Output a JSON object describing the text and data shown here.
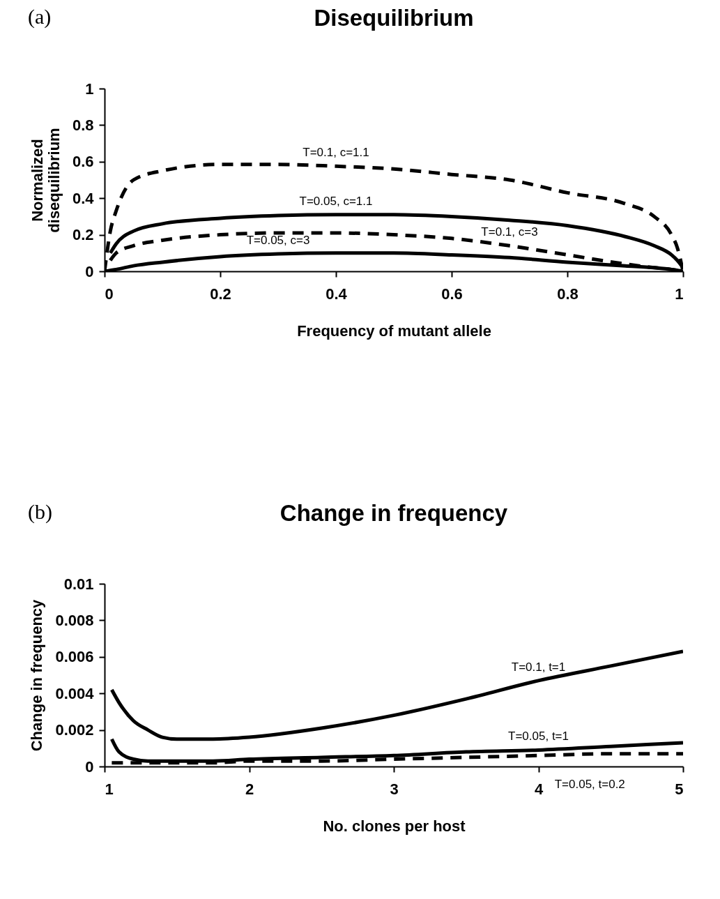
{
  "chart_data": [
    {
      "type": "line",
      "title": "Disequilibrium",
      "xlabel": "Frequency of mutant allele",
      "ylabel": "Normalized disequilibrium",
      "xlim": [
        0,
        1
      ],
      "ylim": [
        0,
        1
      ],
      "xticks": [
        0,
        0.2,
        0.4,
        0.6,
        0.8,
        1
      ],
      "yticks": [
        0,
        0.2,
        0.4,
        0.6,
        0.8,
        1
      ],
      "grid": false,
      "x": [
        0,
        0.01,
        0.02,
        0.05,
        0.1,
        0.2,
        0.3,
        0.4,
        0.5,
        0.6,
        0.7,
        0.8,
        0.9,
        0.95,
        0.98,
        0.99,
        1
      ],
      "series": [
        {
          "color": "#000000",
          "line_style": "dashed",
          "values": [
            0,
            0.22,
            0.33,
            0.5,
            0.55,
            0.585,
            0.585,
            0.575,
            0.56,
            0.53,
            0.5,
            0.43,
            0.37,
            0.3,
            0.2,
            0.13,
            0
          ]
        },
        {
          "color": "#000000",
          "line_style": "solid",
          "values": [
            null,
            0.1,
            0.15,
            0.22,
            0.26,
            0.29,
            0.305,
            0.31,
            0.31,
            0.3,
            0.28,
            0.25,
            0.19,
            0.14,
            0.09,
            0.06,
            0.02
          ]
        },
        {
          "color": "#000000",
          "line_style": "dashed",
          "values": [
            null,
            0.06,
            0.1,
            0.14,
            0.17,
            0.2,
            0.21,
            0.21,
            0.2,
            0.18,
            0.14,
            0.09,
            0.04,
            0.02,
            0.01,
            0.005,
            0
          ]
        },
        {
          "color": "#000000",
          "line_style": "solid",
          "values": [
            0,
            0.005,
            0.01,
            0.03,
            0.05,
            0.08,
            0.095,
            0.1,
            0.1,
            0.09,
            0.075,
            0.05,
            0.03,
            0.02,
            0.01,
            0.005,
            0
          ]
        }
      ],
      "annotations": [
        "(a)",
        {
          "text": "T=0.1, c=1.1",
          "x": 0.4,
          "y": 0.575
        },
        {
          "text": "T=0.05, c=1.1",
          "x": 0.4,
          "y": 0.31
        },
        {
          "text": "T=0.05, c=3",
          "x": 0.3,
          "y": 0.095
        },
        {
          "text": "T=0.1, c=3",
          "x": 0.7,
          "y": 0.14
        }
      ]
    },
    {
      "type": "line",
      "title": "Change in frequency",
      "xlabel": "No. clones per host",
      "ylabel": "Change in frequency",
      "xlim": [
        1,
        5
      ],
      "ylim": [
        0,
        0.01
      ],
      "xticks": [
        1,
        2,
        3,
        4,
        5
      ],
      "yticks": [
        0,
        0.002,
        0.004,
        0.006,
        0.008,
        0.01
      ],
      "grid": false,
      "x": [
        1.05,
        1.1,
        1.2,
        1.3,
        1.4,
        1.5,
        1.75,
        2,
        2.5,
        3,
        3.5,
        4,
        4.5,
        5
      ],
      "series": [
        {
          "color": "#000000",
          "line_style": "solid",
          "values": [
            0.0042,
            0.0035,
            0.0025,
            0.002,
            0.0016,
            0.0015,
            0.0015,
            0.0016,
            0.0021,
            0.0028,
            0.0037,
            0.0047,
            0.0055,
            0.0063
          ]
        },
        {
          "color": "#000000",
          "line_style": "solid",
          "values": [
            0.0015,
            0.0008,
            0.0004,
            0.0003,
            0.0003,
            0.0003,
            0.0003,
            0.0004,
            0.0005,
            0.0006,
            0.0008,
            0.0009,
            0.0011,
            0.0013
          ]
        },
        {
          "color": "#000000",
          "line_style": "dashed",
          "values": [
            0.0002,
            0.0002,
            0.0002,
            0.0002,
            0.0002,
            0.0002,
            0.0002,
            0.0003,
            0.0003,
            0.0004,
            0.0005,
            0.0006,
            0.0007,
            0.0007
          ]
        }
      ],
      "annotations": [
        "(b)",
        {
          "text": "T=0.1, t=1",
          "x": 4,
          "y": 0.0047
        },
        {
          "text": "T=0.05, t=1",
          "x": 4,
          "y": 0.0009
        },
        {
          "text": "T=0.05, t=0.2",
          "x": 4.5,
          "y": 0.0007
        }
      ]
    }
  ]
}
